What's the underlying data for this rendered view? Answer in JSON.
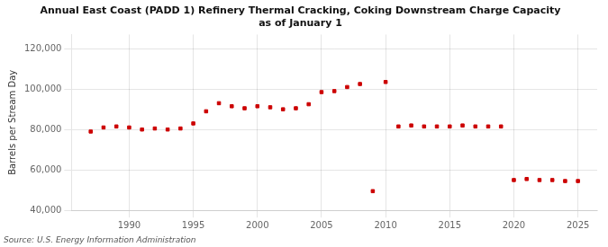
{
  "chart_data": {
    "type": "scatter",
    "title": "Annual East Coast (PADD 1) Refinery Thermal Cracking, Coking Downstream Charge Capacity\nas of January 1",
    "ylabel": "Barrels per Stream Day",
    "annotations": [
      "Source: U.S. Energy Information Administration"
    ],
    "x": [
      1987,
      1988,
      1989,
      1990,
      1991,
      1992,
      1993,
      1994,
      1995,
      1996,
      1997,
      1998,
      1999,
      2000,
      2001,
      2002,
      2003,
      2004,
      2005,
      2006,
      2007,
      2008,
      2009,
      2010,
      2011,
      2012,
      2013,
      2014,
      2015,
      2016,
      2017,
      2018,
      2019,
      2020,
      2021,
      2022,
      2023,
      2024,
      2025
    ],
    "values": [
      79000,
      81000,
      81500,
      81000,
      80000,
      80500,
      80000,
      80500,
      83000,
      89000,
      93000,
      91500,
      90500,
      91500,
      91000,
      90000,
      90500,
      92500,
      98500,
      99000,
      101000,
      102500,
      49500,
      103500,
      81500,
      82000,
      81500,
      81500,
      81500,
      82000,
      81500,
      81500,
      81500,
      55000,
      55500,
      55000,
      55000,
      54500,
      54500
    ],
    "color": "#cc0000",
    "marker": "square",
    "xlim": [
      1985.5,
      2026.5
    ],
    "xticks": [
      1990,
      1995,
      2000,
      2005,
      2010,
      2015,
      2020,
      2025
    ],
    "ylim": [
      40000,
      127000
    ],
    "yticks": [
      {
        "value": 40000,
        "label": "40,000"
      },
      {
        "value": 60000,
        "label": "60,000"
      },
      {
        "value": 80000,
        "label": "80,000"
      },
      {
        "value": 100000,
        "label": "100,000"
      },
      {
        "value": 120000,
        "label": "120,000"
      }
    ],
    "grid": true
  }
}
